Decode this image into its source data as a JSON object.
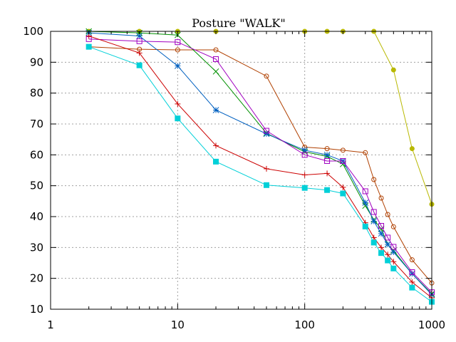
{
  "chart_data": {
    "type": "line",
    "title": "Posture \"WALK\"",
    "xlabel": "",
    "ylabel": "",
    "xscale": "log",
    "xlim": [
      1,
      1000
    ],
    "ylim": [
      10,
      100
    ],
    "xticks": [
      1,
      10,
      100,
      1000
    ],
    "yticks": [
      10,
      20,
      30,
      40,
      50,
      60,
      70,
      80,
      90,
      100
    ],
    "grid": "dotted",
    "legend": "none",
    "series": [
      {
        "color": "#b8b800",
        "marker": "circle",
        "x": [
          2,
          5,
          10,
          20,
          100,
          150,
          200,
          350,
          500,
          700,
          1000
        ],
        "y": [
          100,
          100,
          100,
          100,
          100,
          100,
          100,
          100,
          87.5,
          62,
          44
        ]
      },
      {
        "color": "#b04000",
        "marker": "open-circle",
        "x": [
          2,
          5,
          10,
          20,
          50,
          100,
          150,
          200,
          300,
          350,
          400,
          450,
          500,
          700,
          1000
        ],
        "y": [
          95,
          94.2,
          94,
          94,
          85.5,
          62.5,
          62,
          61.5,
          60.7,
          52,
          46,
          40.7,
          36.7,
          26,
          18.5
        ]
      },
      {
        "color": "#009000",
        "marker": "x",
        "x": [
          2,
          5,
          10,
          20,
          50,
          100,
          150,
          200,
          300,
          350,
          400,
          450,
          500,
          700,
          1000
        ],
        "y": [
          100,
          99.5,
          98.8,
          87,
          67,
          61,
          59.5,
          57,
          43.5,
          39,
          36,
          31,
          29,
          21.5,
          15
        ]
      },
      {
        "color": "#0060c0",
        "marker": "asterisk",
        "x": [
          2,
          5,
          10,
          20,
          50,
          100,
          150,
          200,
          300,
          350,
          400,
          450,
          500,
          700,
          1000
        ],
        "y": [
          99.5,
          98.5,
          88.8,
          74.5,
          66.8,
          61.5,
          60,
          58,
          44.5,
          38.5,
          34.5,
          31,
          28.5,
          21.5,
          14.7
        ]
      },
      {
        "color": "#a000c0",
        "marker": "open-square",
        "x": [
          2,
          5,
          10,
          20,
          50,
          100,
          150,
          200,
          300,
          350,
          400,
          450,
          500,
          700,
          1000
        ],
        "y": [
          97.5,
          96.8,
          96.5,
          91,
          67.8,
          60,
          58,
          58,
          48.2,
          41.5,
          37,
          33.2,
          30.2,
          22,
          15.5
        ]
      },
      {
        "color": "#cc0000",
        "marker": "plus",
        "x": [
          2,
          5,
          10,
          20,
          50,
          100,
          150,
          200,
          300,
          350,
          400,
          450,
          500,
          700,
          1000
        ],
        "y": [
          98.5,
          93,
          76.5,
          63,
          55.5,
          53.5,
          54,
          49.5,
          38,
          33.2,
          30,
          27.7,
          25.4,
          18.8,
          13.7
        ]
      },
      {
        "color": "#00d0d8",
        "marker": "filled-square",
        "x": [
          2,
          5,
          10,
          20,
          50,
          100,
          150,
          200,
          300,
          350,
          400,
          450,
          500,
          700,
          1000
        ],
        "y": [
          95,
          89,
          71.8,
          57.8,
          50.2,
          49.3,
          48.6,
          47.5,
          36.8,
          31.6,
          28.2,
          25.8,
          23.2,
          17,
          12.4
        ]
      }
    ]
  }
}
